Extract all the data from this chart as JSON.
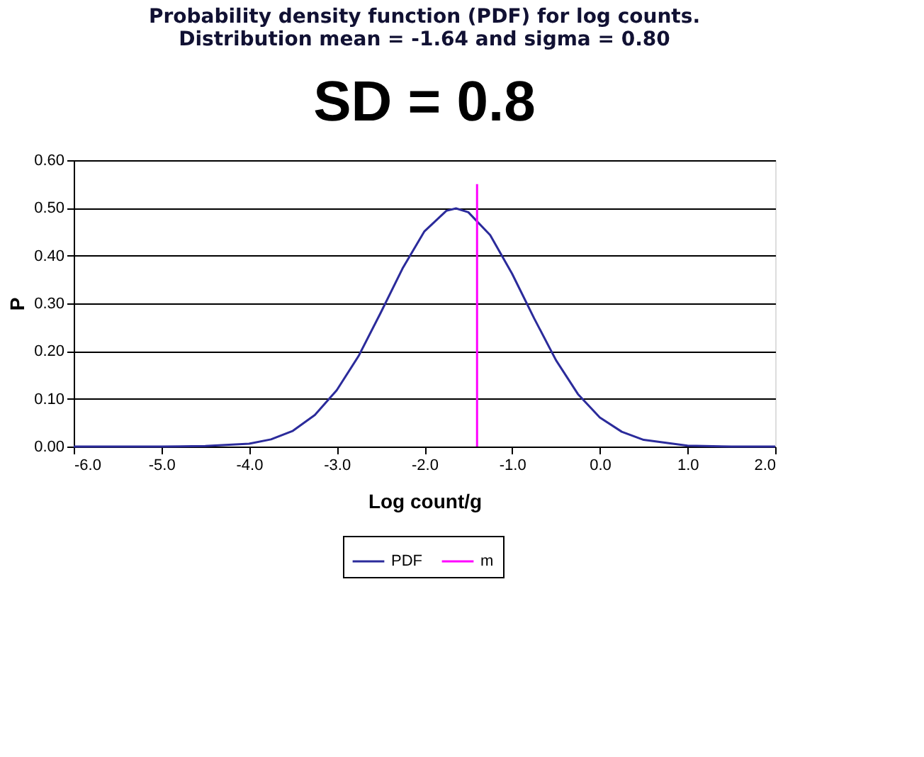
{
  "chart_data": {
    "type": "line",
    "title": "Probability density function (PDF) for log counts.\nDistribution mean = -1.64 and sigma = 0.80",
    "subtitle": "SD = 0.8",
    "xlabel": "Log count/g",
    "ylabel": "P",
    "xlim": [
      -6,
      2
    ],
    "xticks": [
      {
        "value": -6,
        "label": "-6.0"
      },
      {
        "value": -5,
        "label": "-5.0"
      },
      {
        "value": -4,
        "label": "-4.0"
      },
      {
        "value": -3,
        "label": "-3.0"
      },
      {
        "value": -2,
        "label": "-2.0"
      },
      {
        "value": -1,
        "label": "-1.0"
      },
      {
        "value": 0,
        "label": "0.0"
      },
      {
        "value": 1,
        "label": "1.0"
      },
      {
        "value": 2,
        "label": "2.0"
      }
    ],
    "ylim": [
      0,
      0.6
    ],
    "yticks": [
      {
        "value": 0,
        "label": "0.00"
      },
      {
        "value": 0.1,
        "label": "0.10"
      },
      {
        "value": 0.2,
        "label": "0.20"
      },
      {
        "value": 0.3,
        "label": "0.30"
      },
      {
        "value": 0.4,
        "label": "0.40"
      },
      {
        "value": 0.5,
        "label": "0.50"
      },
      {
        "value": 0.6,
        "label": "0.60"
      }
    ],
    "grid": "y",
    "legend": "bottom",
    "marker": "none",
    "line_style": "solid",
    "series": [
      {
        "name": "PDF",
        "color": "#2b2b9b",
        "x": [
          -6,
          -5,
          -4.5,
          -4,
          -3.75,
          -3.5,
          -3.25,
          -3,
          -2.75,
          -2.5,
          -2.25,
          -2,
          -1.75,
          -1.64,
          -1.5,
          -1.25,
          -1,
          -0.75,
          -0.5,
          -0.25,
          0,
          0.25,
          0.5,
          1,
          1.5,
          2
        ],
        "values": [
          0,
          0,
          0.001,
          0.006,
          0.015,
          0.033,
          0.066,
          0.118,
          0.19,
          0.28,
          0.373,
          0.451,
          0.494,
          0.499,
          0.491,
          0.443,
          0.362,
          0.269,
          0.181,
          0.11,
          0.061,
          0.031,
          0.014,
          0.002,
          0,
          0
        ]
      },
      {
        "name": "m",
        "color": "#ff00ff",
        "x": [
          -1.4,
          -1.4
        ],
        "values": [
          0,
          0.55
        ]
      }
    ]
  }
}
